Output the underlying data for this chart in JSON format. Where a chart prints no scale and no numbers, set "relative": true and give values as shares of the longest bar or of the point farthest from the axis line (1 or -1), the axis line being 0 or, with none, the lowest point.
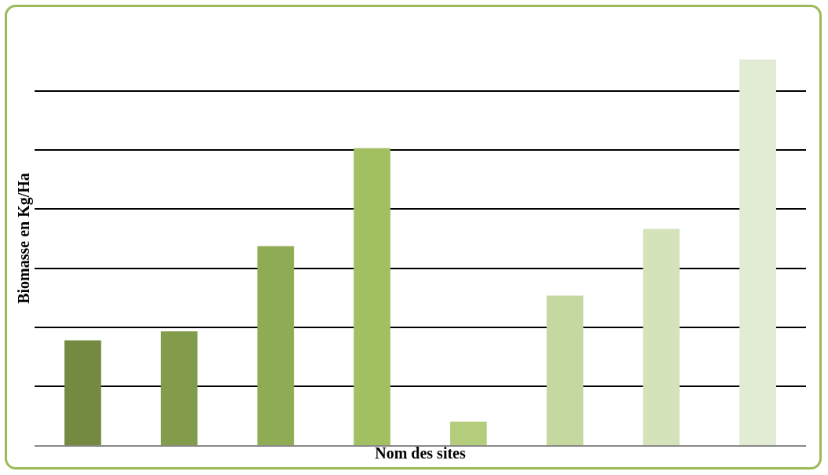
{
  "chart_data": {
    "type": "bar",
    "xlabel": "Nom des sites",
    "ylabel": "Biomasse en Kg/Ha",
    "categories": [
      null,
      null,
      null,
      null,
      null,
      null,
      null,
      null
    ],
    "values": [
      0.272,
      0.295,
      0.516,
      0.77,
      0.061,
      0.388,
      0.561,
      1
    ],
    "colors": [
      "#748a40",
      "#839c4c",
      "#8fac55",
      "#a2c062",
      "#b3cd7c",
      "#c5d8a0",
      "#d5e3bb",
      "#e2ebd3"
    ],
    "relative": true,
    "grid": "y"
  }
}
